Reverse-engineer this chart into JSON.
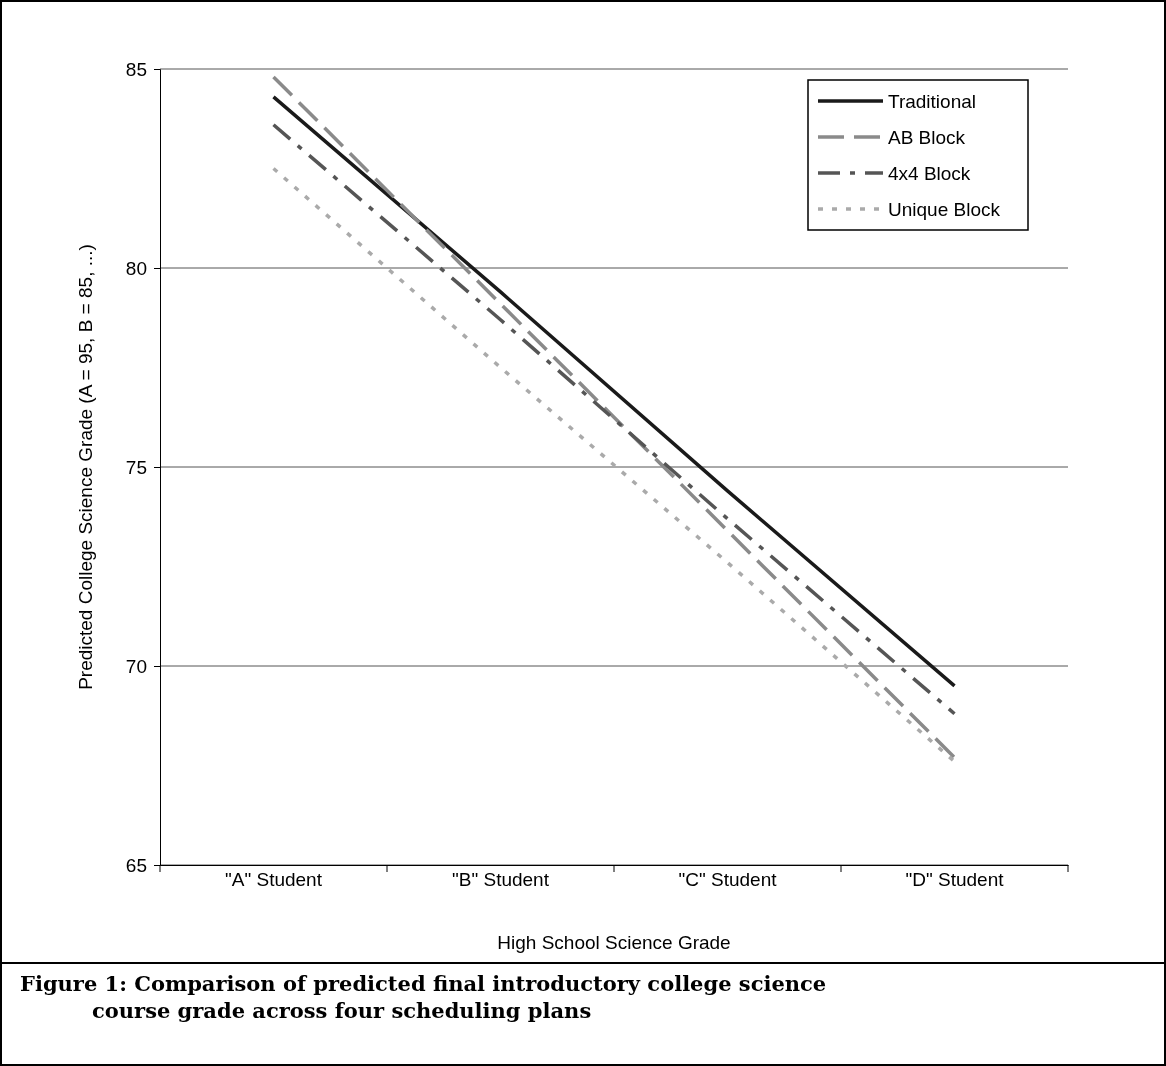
{
  "chart_data": {
    "type": "line",
    "xlabel": "High School Science Grade",
    "ylabel": "Predicted College Science Grade (A = 95, B = 85, ...)",
    "annotations": [
      "Figure 1: Comparison of predicted final introductory college science course grade across four scheduling plans"
    ],
    "categories": [
      "\"A\" Student",
      "\"B\" Student",
      "\"C\" Student",
      "\"D\" Student"
    ],
    "ylim": [
      65,
      85
    ],
    "yticks": [
      65,
      70,
      75,
      80,
      85
    ],
    "grid": "y",
    "legend": "top right",
    "marker": "none",
    "series": [
      {
        "name": "Traditional",
        "color": "#1a1a1a",
        "line_style": "solid",
        "values": [
          84.3,
          79.4,
          74.4,
          69.5
        ]
      },
      {
        "name": "AB Block",
        "color": "#8a8a8a",
        "line_style": "dashed",
        "values": [
          84.8,
          79.1,
          73.4,
          67.7
        ]
      },
      {
        "name": "4x4 Block",
        "color": "#555555",
        "line_style": "dashdot",
        "values": [
          83.6,
          78.7,
          73.7,
          68.8
        ]
      },
      {
        "name": "Unique Block",
        "color": "#aaaaaa",
        "line_style": "dotted",
        "values": [
          82.5,
          77.5,
          72.6,
          67.6
        ]
      }
    ]
  }
}
